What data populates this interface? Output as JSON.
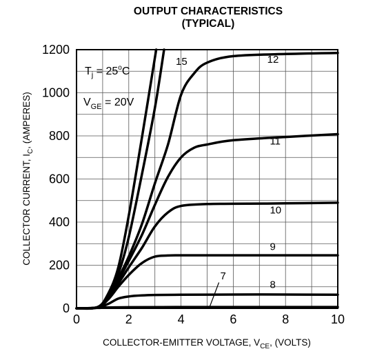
{
  "chart_data": {
    "type": "line",
    "title": "OUTPUT CHARACTERISTICS",
    "subtitle": "(TYPICAL)",
    "xlabel": {
      "main": "COLLECTOR-EMITTER VOLTAGE, V",
      "sub": "CE",
      "tail": ", (VOLTS)"
    },
    "ylabel": {
      "main": "COLLECTOR CURRENT, I",
      "sub": "C",
      "tail": ", (AMPERES)"
    },
    "xlim": [
      0,
      10
    ],
    "ylim": [
      0,
      1200
    ],
    "xticks": [
      0,
      2,
      4,
      6,
      8,
      10
    ],
    "yticks": [
      0,
      200,
      400,
      600,
      800,
      1000,
      1200
    ],
    "x_minor_step": 1,
    "y_minor_step": 100,
    "grid": true,
    "annotations": {
      "tj": {
        "pre": "T",
        "sub": "j",
        "mid": " = 25",
        "sup": "o",
        "post": "C"
      },
      "vge": {
        "pre": "V",
        "sub": "GE",
        "post": " = 20V"
      }
    },
    "series": [
      {
        "name": "7",
        "x": [
          0,
          0.8,
          1.2,
          2,
          4,
          6,
          8,
          10
        ],
        "y": [
          0,
          2,
          4,
          5,
          6,
          6,
          6,
          6
        ]
      },
      {
        "name": "8",
        "x": [
          0,
          0.8,
          1.2,
          1.6,
          2,
          2.5,
          3,
          4,
          6,
          8,
          10
        ],
        "y": [
          0,
          3,
          20,
          45,
          55,
          60,
          62,
          63,
          64,
          64,
          63
        ]
      },
      {
        "name": "9",
        "x": [
          0,
          0.8,
          1.2,
          1.6,
          2,
          2.5,
          3,
          3.5,
          4,
          6,
          8,
          10
        ],
        "y": [
          0,
          5,
          40,
          100,
          155,
          210,
          240,
          245,
          246,
          246,
          246,
          246
        ]
      },
      {
        "name": "10",
        "x": [
          0,
          0.8,
          1.2,
          1.6,
          2,
          2.5,
          3,
          3.5,
          4,
          5,
          6,
          8,
          10
        ],
        "y": [
          0,
          5,
          45,
          115,
          190,
          280,
          380,
          445,
          475,
          484,
          485,
          487,
          490
        ]
      },
      {
        "name": "11",
        "x": [
          0,
          0.8,
          1.2,
          1.6,
          2,
          2.5,
          3,
          3.5,
          4,
          4.5,
          5,
          6,
          8,
          10
        ],
        "y": [
          0,
          5,
          50,
          130,
          220,
          340,
          480,
          610,
          700,
          745,
          760,
          780,
          795,
          808
        ]
      },
      {
        "name": "12",
        "x": [
          0,
          0.8,
          1.2,
          1.6,
          2,
          2.5,
          3,
          3.5,
          4,
          4.5,
          5,
          6,
          8,
          10
        ],
        "y": [
          0,
          5,
          55,
          140,
          240,
          390,
          580,
          760,
          990,
          1090,
          1140,
          1170,
          1180,
          1185
        ]
      },
      {
        "name": "",
        "x": [
          0,
          0.8,
          1.2,
          1.6,
          2,
          2.5,
          3.0,
          3.35
        ],
        "y": [
          0,
          5,
          60,
          160,
          330,
          620,
          930,
          1200
        ]
      },
      {
        "name": "15",
        "x": [
          0,
          0.8,
          1.2,
          1.6,
          2,
          2.5,
          3.05
        ],
        "y": [
          0,
          5,
          65,
          190,
          430,
          790,
          1200
        ]
      }
    ],
    "curve_labels": [
      {
        "text": "15",
        "x": 3.8,
        "y": 1130
      },
      {
        "text": "12",
        "x": 7.3,
        "y": 1140
      },
      {
        "text": "11",
        "x": 7.4,
        "y": 760
      },
      {
        "text": "10",
        "x": 7.4,
        "y": 440
      },
      {
        "text": "9",
        "x": 7.4,
        "y": 270
      },
      {
        "text": "8",
        "x": 7.4,
        "y": 95
      },
      {
        "text": "7",
        "x": 5.5,
        "y": 135
      }
    ]
  }
}
